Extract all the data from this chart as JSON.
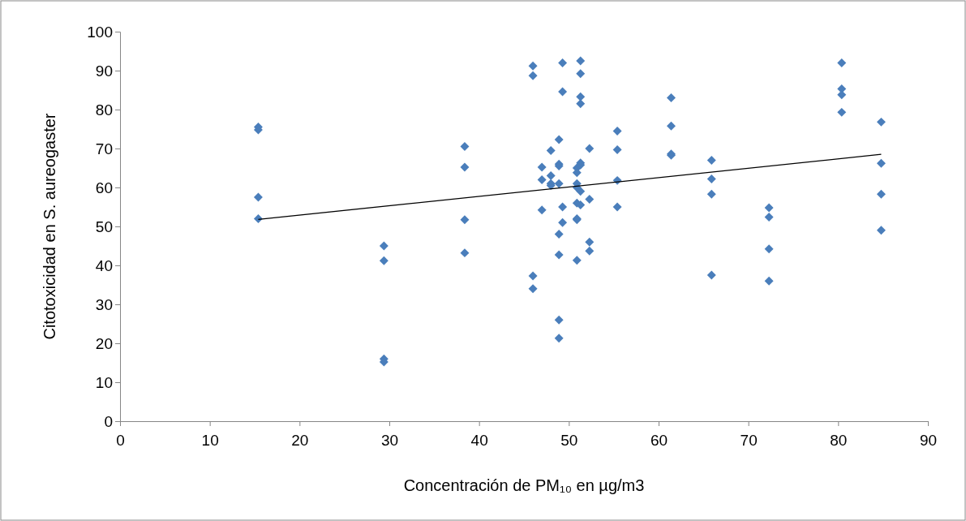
{
  "chart_data": {
    "type": "scatter",
    "xlabel": "Concentración de PM₁₀ en µg/m3",
    "ylabel": "Citotoxicidad en S. aureogaster",
    "xlim": [
      0,
      90
    ],
    "xticks": [
      0,
      10,
      20,
      30,
      40,
      50,
      60,
      70,
      80,
      90
    ],
    "ylim": [
      0,
      100
    ],
    "yticks": [
      0,
      10,
      20,
      30,
      40,
      50,
      60,
      70,
      80,
      90,
      100
    ],
    "grid": false,
    "marker": "diamond",
    "series": [
      {
        "color": "#4a7ebb",
        "x": [
          15.4,
          15.4,
          15.4,
          15.4,
          29.4,
          29.4,
          29.4,
          29.4,
          38.4,
          38.4,
          38.4,
          38.4,
          46,
          46,
          46,
          46,
          47,
          47,
          47,
          48,
          48,
          48,
          48,
          48.9,
          48.9,
          48.9,
          48.9,
          48.9,
          48.9,
          48.9,
          48.9,
          49.3,
          49.3,
          49.3,
          49.3,
          50.9,
          50.9,
          50.9,
          50.9,
          50.9,
          50.9,
          50.9,
          50.9,
          51.3,
          51.3,
          51.3,
          51.3,
          51.3,
          51.3,
          51.3,
          51.3,
          52.3,
          52.3,
          52.3,
          52.3,
          55.4,
          55.4,
          55.4,
          55.4,
          61.4,
          61.4,
          61.4,
          61.4,
          65.9,
          65.9,
          65.9,
          65.9,
          72.3,
          72.3,
          72.3,
          72.3,
          80.4,
          80.4,
          80.4,
          80.4,
          84.8,
          84.8,
          84.8,
          84.8
        ],
        "values": [
          75.5,
          74.8,
          57.5,
          52,
          45,
          41.2,
          16,
          15.2,
          70.5,
          65.2,
          51.7,
          43.2,
          91.2,
          88.7,
          37.3,
          34,
          65.2,
          62,
          54.2,
          69.5,
          63,
          60.5,
          61,
          72.3,
          66,
          65.5,
          61,
          48,
          42.7,
          26,
          21.3,
          92,
          84.6,
          55,
          51,
          65,
          63.8,
          61,
          60,
          56,
          52,
          51.7,
          41.3,
          92.5,
          89.2,
          83.3,
          81.5,
          66.3,
          65.8,
          59,
          55.5,
          70,
          57,
          46,
          43.7,
          74.5,
          69.7,
          61.8,
          55,
          83,
          75.8,
          68.6,
          68.3,
          67,
          62.2,
          58.3,
          37.5,
          54.8,
          52.4,
          44.2,
          36,
          92,
          85.3,
          83.8,
          79.3,
          76.8,
          66.2,
          58.3,
          49
        ]
      },
      {
        "type": "line",
        "color": "#000000",
        "marker": "none",
        "line_style": "solid",
        "x": [
          15.4,
          84.8
        ],
        "values": [
          51.8,
          68.5
        ]
      }
    ]
  }
}
